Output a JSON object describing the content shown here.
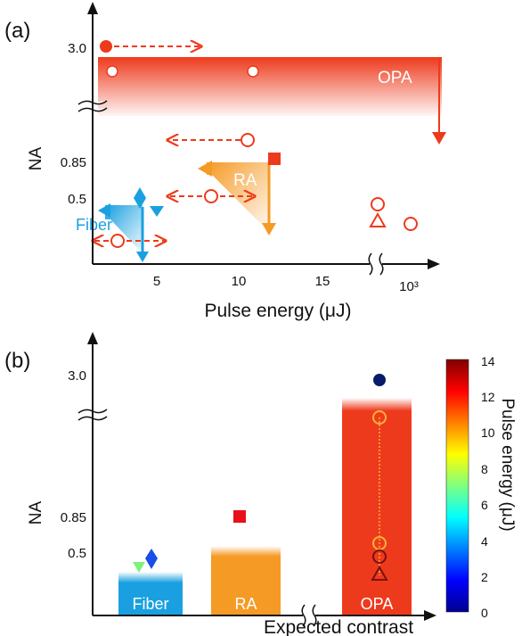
{
  "colors": {
    "opa": "#ee3a1c",
    "ra": "#f59a25",
    "fiber": "#1aa0e0",
    "axis": "#111111"
  },
  "chart_data": [
    {
      "panel_label": "(a)",
      "type": "scatter",
      "title": "",
      "xlabel": "Pulse energy (μJ)",
      "ylabel": "NA",
      "x_ticks": [
        "5",
        "10",
        "15",
        "10³"
      ],
      "y_ticks": [
        "0.5",
        "0.85",
        "3.0"
      ],
      "x_axis_break": true,
      "y_axis_break": true,
      "region_labels": [
        "OPA",
        "RA",
        "Fiber"
      ],
      "series": [
        {
          "name": "OPA",
          "points": [
            {
              "x": 1,
              "y": 3.0,
              "marker": "filled-circle",
              "arrow": "right"
            },
            {
              "x": 2,
              "y": 2.9,
              "marker": "open-circle"
            },
            {
              "x": 11,
              "y": 2.9,
              "marker": "open-circle"
            },
            {
              "x": 10,
              "y": 0.95,
              "marker": "open-circle",
              "arrow": "left"
            },
            {
              "x": 1000,
              "y": 0.5,
              "marker": "open-circle"
            },
            {
              "x": 1000,
              "y": 0.42,
              "marker": "open-triangle"
            },
            {
              "x": 1200,
              "y": 0.4,
              "marker": "open-circle"
            }
          ]
        },
        {
          "name": "RA",
          "points": [
            {
              "x": 12,
              "y": 0.85,
              "marker": "filled-square"
            },
            {
              "x": 8,
              "y": 0.52,
              "marker": "open-circle",
              "arrow": "both"
            }
          ]
        },
        {
          "name": "Fiber",
          "points": [
            {
              "x": 4,
              "y": 0.52,
              "marker": "filled-diamond"
            },
            {
              "x": 5,
              "y": 0.45,
              "marker": "filled-triangle-down"
            },
            {
              "x": 2,
              "y": 0.28,
              "marker": "open-circle",
              "arrow": "both"
            }
          ]
        }
      ]
    },
    {
      "panel_label": "(b)",
      "type": "bar",
      "title": "",
      "xlabel": "Expected contrast",
      "ylabel": "NA",
      "y_ticks": [
        "0.5",
        "0.85",
        "3.0"
      ],
      "categories": [
        "Fiber",
        "RA",
        "OPA"
      ],
      "values": [
        0.4,
        0.75,
        2.8
      ],
      "colorbar": {
        "label": "Pulse energy (μJ)",
        "ticks": [
          "0",
          "2",
          "4",
          "6",
          "8",
          "10",
          "12",
          "14"
        ],
        "min": 0,
        "max": 14
      },
      "points": [
        {
          "category": "Fiber",
          "y": 0.45,
          "marker": "filled-triangle-down",
          "energy": 5
        },
        {
          "category": "Fiber",
          "y": 0.5,
          "marker": "filled-diamond",
          "energy": 2
        },
        {
          "category": "RA",
          "y": 0.85,
          "marker": "filled-square",
          "energy": 12
        },
        {
          "category": "OPA",
          "y": 3.0,
          "marker": "filled-circle",
          "energy": 0.5
        },
        {
          "category": "OPA",
          "y": 2.9,
          "marker": "open-circle",
          "energy": 11
        },
        {
          "category": "OPA",
          "y": 0.55,
          "marker": "open-circle",
          "energy": 10
        },
        {
          "category": "OPA",
          "y": 0.48,
          "marker": "open-circle",
          "energy": 14
        },
        {
          "category": "OPA",
          "y": 0.4,
          "marker": "open-triangle",
          "energy": 12
        }
      ]
    }
  ]
}
